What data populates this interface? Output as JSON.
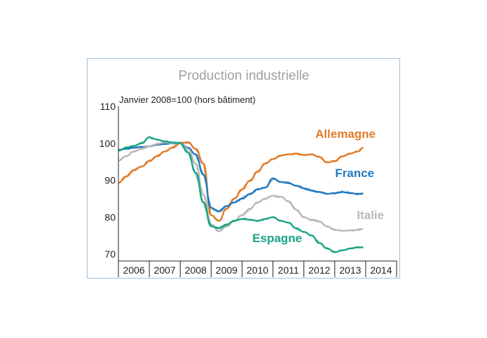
{
  "chart_data": {
    "type": "line",
    "title": "Production industrielle",
    "subtitle": "Janvier 2008=100 (hors bâtiment)",
    "xlabel": "",
    "ylabel": "",
    "ylim": [
      70,
      110
    ],
    "yticks": [
      70,
      80,
      90,
      100,
      110
    ],
    "xlim": [
      2006,
      2015
    ],
    "x_categories": [
      "2006",
      "2007",
      "2008",
      "2009",
      "2010",
      "2011",
      "2012",
      "2013",
      "2014"
    ],
    "grid": false,
    "series": [
      {
        "name": "Allemagne",
        "color": "#e07b28",
        "x": [
          2006.0,
          2006.25,
          2006.5,
          2006.75,
          2007.0,
          2007.25,
          2007.5,
          2007.75,
          2008.0,
          2008.25,
          2008.5,
          2008.75,
          2009.0,
          2009.25,
          2009.5,
          2009.75,
          2010.0,
          2010.25,
          2010.5,
          2010.75,
          2011.0,
          2011.25,
          2011.5,
          2011.75,
          2012.0,
          2012.25,
          2012.5,
          2012.75,
          2013.0,
          2013.25,
          2013.5,
          2013.75,
          2013.92
        ],
        "values": [
          89.3,
          91.0,
          92.7,
          93.7,
          95.2,
          96.5,
          97.8,
          98.8,
          100.0,
          100.3,
          98.5,
          94.5,
          80.5,
          79.0,
          82.3,
          85.0,
          87.5,
          89.8,
          92.3,
          94.5,
          95.7,
          96.7,
          97.0,
          97.2,
          96.8,
          97.0,
          96.3,
          94.8,
          95.2,
          96.5,
          97.2,
          97.8,
          98.8
        ]
      },
      {
        "name": "France",
        "color": "#1f78c1",
        "x": [
          2006.0,
          2006.25,
          2006.5,
          2006.75,
          2007.0,
          2007.25,
          2007.5,
          2007.75,
          2008.0,
          2008.25,
          2008.5,
          2008.75,
          2009.0,
          2009.25,
          2009.5,
          2009.75,
          2010.0,
          2010.25,
          2010.5,
          2010.75,
          2011.0,
          2011.25,
          2011.5,
          2011.75,
          2012.0,
          2012.25,
          2012.5,
          2012.75,
          2013.0,
          2013.25,
          2013.5,
          2013.75,
          2013.92
        ],
        "values": [
          98.2,
          98.5,
          98.8,
          99.0,
          99.2,
          99.6,
          99.8,
          100.0,
          100.0,
          98.8,
          97.0,
          91.5,
          82.5,
          81.5,
          83.0,
          84.0,
          85.0,
          86.2,
          87.5,
          88.0,
          90.5,
          89.5,
          89.2,
          88.5,
          87.8,
          87.2,
          86.8,
          86.3,
          86.5,
          86.8,
          86.5,
          86.3,
          86.4
        ]
      },
      {
        "name": "Italie",
        "color": "#b8b8b8",
        "x": [
          2006.0,
          2006.25,
          2006.5,
          2006.75,
          2007.0,
          2007.25,
          2007.5,
          2007.75,
          2008.0,
          2008.25,
          2008.5,
          2008.75,
          2009.0,
          2009.25,
          2009.5,
          2009.75,
          2010.0,
          2010.25,
          2010.5,
          2010.75,
          2011.0,
          2011.25,
          2011.5,
          2011.75,
          2012.0,
          2012.25,
          2012.5,
          2012.75,
          2013.0,
          2013.25,
          2013.5,
          2013.75,
          2013.92
        ],
        "values": [
          95.3,
          96.5,
          97.8,
          98.5,
          99.2,
          99.8,
          100.3,
          100.0,
          100.0,
          98.5,
          94.5,
          86.0,
          78.0,
          76.2,
          77.5,
          79.0,
          80.5,
          82.2,
          84.0,
          85.0,
          85.8,
          85.5,
          84.3,
          82.0,
          80.0,
          79.2,
          78.8,
          77.5,
          76.5,
          76.3,
          76.4,
          76.5,
          76.8
        ]
      },
      {
        "name": "Espagne",
        "color": "#1aa383",
        "x": [
          2006.0,
          2006.25,
          2006.5,
          2006.75,
          2007.0,
          2007.25,
          2007.5,
          2007.75,
          2008.0,
          2008.25,
          2008.5,
          2008.75,
          2009.0,
          2009.25,
          2009.5,
          2009.75,
          2010.0,
          2010.25,
          2010.5,
          2010.75,
          2011.0,
          2011.25,
          2011.5,
          2011.75,
          2012.0,
          2012.25,
          2012.5,
          2012.75,
          2013.0,
          2013.25,
          2013.5,
          2013.75,
          2013.92
        ],
        "values": [
          98.0,
          98.8,
          99.3,
          100.0,
          101.6,
          101.0,
          100.5,
          100.2,
          100.0,
          97.5,
          92.0,
          84.0,
          77.5,
          77.0,
          78.0,
          79.0,
          79.5,
          79.3,
          79.0,
          79.5,
          80.0,
          79.0,
          78.5,
          77.0,
          76.0,
          75.0,
          73.0,
          71.5,
          70.5,
          71.0,
          71.5,
          71.8,
          71.8
        ]
      }
    ]
  }
}
